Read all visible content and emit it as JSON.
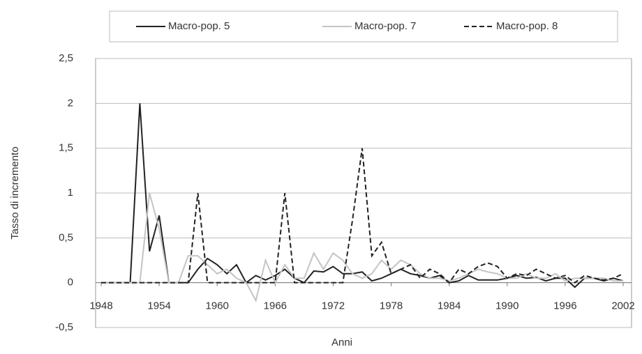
{
  "chart_data": {
    "type": "line",
    "x_label": "Anni",
    "y_label": "Tasso di incremento",
    "x": [
      1948,
      1949,
      1950,
      1951,
      1952,
      1953,
      1954,
      1955,
      1956,
      1957,
      1958,
      1959,
      1960,
      1961,
      1962,
      1963,
      1964,
      1965,
      1966,
      1967,
      1968,
      1969,
      1970,
      1971,
      1972,
      1973,
      1974,
      1975,
      1976,
      1977,
      1978,
      1979,
      1980,
      1981,
      1982,
      1983,
      1984,
      1985,
      1986,
      1987,
      1988,
      1989,
      1990,
      1991,
      1992,
      1993,
      1994,
      1995,
      1996,
      1997,
      1998,
      1999,
      2000,
      2001,
      2002
    ],
    "series": [
      {
        "name": "Macro-pop. 5",
        "color": "#222222",
        "dash": "solid",
        "values": [
          0,
          0,
          0,
          0,
          2.0,
          0.35,
          0.75,
          0,
          0,
          0,
          0.15,
          0.27,
          0.2,
          0.1,
          0.2,
          0,
          0.08,
          0.03,
          0.08,
          0.15,
          0.05,
          0,
          0.13,
          0.12,
          0.18,
          0.1,
          0.1,
          0.12,
          0.02,
          0.05,
          0.1,
          0.15,
          0.1,
          0.08,
          0.05,
          0.08,
          0,
          0.02,
          0.08,
          0.03,
          0.03,
          0.03,
          0.05,
          0.08,
          0.05,
          0.06,
          0.02,
          0.05,
          0.05,
          -0.05,
          0.05,
          0.05,
          0.02,
          0.05,
          0.02
        ]
      },
      {
        "name": "Macro-pop. 7",
        "color": "#c4c4c4",
        "dash": "solid",
        "values": [
          0,
          0,
          0,
          0,
          0,
          1.0,
          0.6,
          0,
          0,
          0.3,
          0.3,
          0.2,
          0.1,
          0.15,
          0.05,
          0,
          -0.2,
          0.25,
          0,
          0.2,
          0.05,
          0.05,
          0.33,
          0.15,
          0.33,
          0.25,
          0.1,
          0.05,
          0.1,
          0.25,
          0.15,
          0.25,
          0.2,
          0.1,
          0.05,
          0.05,
          0.02,
          0.05,
          0.1,
          0.15,
          0.12,
          0.1,
          0.05,
          0.05,
          0.1,
          0.05,
          0.05,
          0.1,
          0.02,
          0.05,
          0.05,
          0.05,
          0.05,
          0.02,
          0.02
        ]
      },
      {
        "name": "Macro-pop. 8",
        "color": "#222222",
        "dash": "dashed",
        "values": [
          0,
          0,
          0,
          0,
          0,
          0,
          0,
          0,
          0,
          0,
          1.0,
          0,
          0,
          0,
          0,
          0,
          0,
          0,
          0,
          1.0,
          0,
          0,
          0,
          0,
          0,
          0,
          0.7,
          1.5,
          0.3,
          0.45,
          0.1,
          0.15,
          0.2,
          0.05,
          0.15,
          0.1,
          0,
          0.15,
          0.1,
          0.18,
          0.22,
          0.18,
          0.05,
          0.1,
          0.08,
          0.15,
          0.1,
          0.05,
          0.08,
          0,
          0.08,
          0.05,
          0.03,
          0.05,
          0.1
        ]
      }
    ],
    "xlim": [
      1948,
      2002
    ],
    "xticks": [
      1948,
      1954,
      1960,
      1966,
      1972,
      1978,
      1984,
      1990,
      1996,
      2002
    ],
    "ylim": [
      -0.5,
      2.5
    ],
    "yticks": [
      {
        "value": -0.5,
        "label": "-0,5"
      },
      0,
      {
        "value": 0.5,
        "label": "0,5"
      },
      1,
      {
        "value": 1.5,
        "label": "1,5"
      },
      2,
      {
        "value": 2.5,
        "label": "2,5"
      }
    ],
    "grid": true,
    "legend": "top"
  }
}
